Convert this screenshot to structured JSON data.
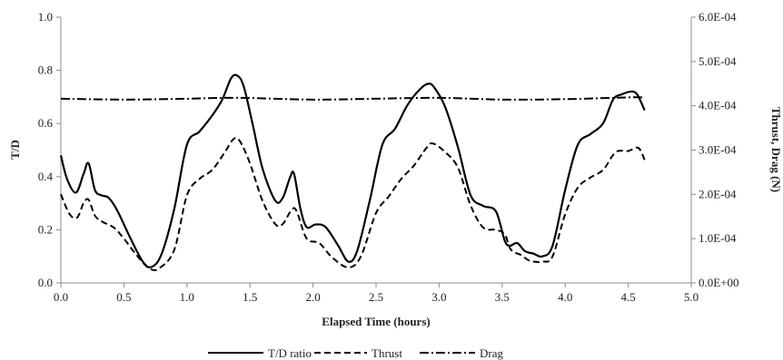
{
  "chart_data": {
    "type": "line",
    "xlabel": "Elapsed Time (hours)",
    "ylabel_left": "T/D",
    "ylabel_right": "Thrust, Drag (N)",
    "xlim": [
      0,
      5
    ],
    "ylim_left": [
      0,
      1
    ],
    "ylim_right": [
      0,
      0.0006
    ],
    "x_ticks": [
      "0.0",
      "0.5",
      "1.0",
      "1.5",
      "2.0",
      "2.5",
      "3.0",
      "3.5",
      "4.0",
      "4.5",
      "5.0"
    ],
    "y_ticks_left": [
      "0.0",
      "0.2",
      "0.4",
      "0.6",
      "0.8",
      "1.0"
    ],
    "y_ticks_right": [
      "0.0E+00",
      "1.0E-04",
      "2.0E-04",
      "3.0E-04",
      "4.0E-04",
      "5.0E-04",
      "6.0E-04"
    ],
    "grid": false,
    "legend_position": "bottom",
    "series": [
      {
        "name": "T/D ratio",
        "axis": "left",
        "style": "solid",
        "x": [
          0.0,
          0.05,
          0.12,
          0.18,
          0.22,
          0.27,
          0.32,
          0.38,
          0.45,
          0.55,
          0.65,
          0.72,
          0.8,
          0.9,
          1.0,
          1.1,
          1.2,
          1.28,
          1.35,
          1.4,
          1.45,
          1.52,
          1.6,
          1.7,
          1.76,
          1.82,
          1.85,
          1.9,
          1.95,
          2.02,
          2.1,
          2.2,
          2.28,
          2.35,
          2.45,
          2.55,
          2.65,
          2.75,
          2.85,
          2.92,
          2.97,
          3.05,
          3.15,
          3.25,
          3.35,
          3.45,
          3.52,
          3.56,
          3.62,
          3.68,
          3.75,
          3.82,
          3.9,
          4.0,
          4.1,
          4.2,
          4.3,
          4.38,
          4.45,
          4.52,
          4.57,
          4.63
        ],
        "y": [
          0.48,
          0.39,
          0.34,
          0.41,
          0.45,
          0.35,
          0.33,
          0.32,
          0.27,
          0.17,
          0.08,
          0.06,
          0.11,
          0.28,
          0.52,
          0.57,
          0.63,
          0.69,
          0.77,
          0.78,
          0.74,
          0.6,
          0.43,
          0.31,
          0.32,
          0.4,
          0.41,
          0.28,
          0.21,
          0.22,
          0.21,
          0.14,
          0.08,
          0.12,
          0.31,
          0.52,
          0.58,
          0.67,
          0.73,
          0.75,
          0.73,
          0.66,
          0.51,
          0.33,
          0.29,
          0.27,
          0.16,
          0.14,
          0.15,
          0.12,
          0.11,
          0.1,
          0.14,
          0.35,
          0.52,
          0.56,
          0.6,
          0.69,
          0.71,
          0.72,
          0.71,
          0.65
        ]
      },
      {
        "name": "Thrust",
        "axis": "right",
        "style": "dashed",
        "x": [
          0.0,
          0.07,
          0.13,
          0.18,
          0.22,
          0.27,
          0.33,
          0.42,
          0.5,
          0.6,
          0.7,
          0.78,
          0.9,
          1.0,
          1.1,
          1.2,
          1.3,
          1.37,
          1.42,
          1.5,
          1.6,
          1.7,
          1.76,
          1.83,
          1.87,
          1.95,
          2.05,
          2.15,
          2.28,
          2.38,
          2.5,
          2.6,
          2.7,
          2.8,
          2.9,
          2.95,
          3.05,
          3.15,
          3.25,
          3.35,
          3.45,
          3.52,
          3.57,
          3.65,
          3.72,
          3.82,
          3.9,
          4.0,
          4.1,
          4.2,
          4.3,
          4.4,
          4.5,
          4.58,
          4.63
        ],
        "y": [
          0.0002,
          0.000155,
          0.000148,
          0.00018,
          0.000188,
          0.000152,
          0.000138,
          0.000125,
          0.0001,
          6.3e-05,
          3.3e-05,
          3.3e-05,
          7.5e-05,
          0.000198,
          0.000235,
          0.000255,
          0.000295,
          0.000325,
          0.00032,
          0.00027,
          0.000185,
          0.000133,
          0.000133,
          0.000165,
          0.000162,
          0.0001,
          9e-05,
          5.8e-05,
          3.5e-05,
          6e-05,
          0.000158,
          0.000195,
          0.000235,
          0.000265,
          0.000305,
          0.000315,
          0.000295,
          0.00026,
          0.000175,
          0.000125,
          0.00012,
          0.00011,
          7.5e-05,
          6.3e-05,
          5e-05,
          4.8e-05,
          6e-05,
          0.000155,
          0.000215,
          0.000238,
          0.000255,
          0.000295,
          0.000298,
          0.000305,
          0.000278
        ]
      },
      {
        "name": "Drag",
        "axis": "right",
        "style": "dashdot",
        "x": [
          0.0,
          0.5,
          1.0,
          1.4,
          2.0,
          2.5,
          3.0,
          3.5,
          4.0,
          4.5,
          4.63
        ],
        "y": [
          0.000416,
          0.000414,
          0.000416,
          0.000418,
          0.000414,
          0.000416,
          0.000418,
          0.000414,
          0.000415,
          0.000419,
          0.000419
        ]
      }
    ]
  }
}
